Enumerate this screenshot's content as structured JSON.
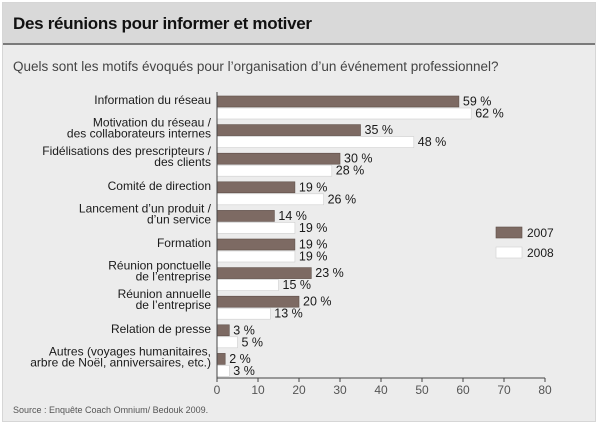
{
  "header": {
    "title": "Des réunions pour informer et motiver",
    "question": "Quels sont les motifs évoqués pour l’organisation d’un événement professionnel?"
  },
  "source": "Source : Enquête Coach Omnium/ Bedouk 2009.",
  "colors": {
    "series_2007": "#7d6a63",
    "series_2008": "#ffffff",
    "background": "#ececec",
    "title_bar": "#d9d9d9"
  },
  "chart_data": {
    "type": "bar",
    "orientation": "horizontal",
    "categories": [
      [
        "Information du réseau"
      ],
      [
        "Motivation du réseau /",
        "des collaborateurs internes"
      ],
      [
        "Fidélisations des prescripteurs /",
        "des clients"
      ],
      [
        "Comité de direction"
      ],
      [
        "Lancement d’un produit /",
        "d’un service"
      ],
      [
        "Formation"
      ],
      [
        "Réunion ponctuelle",
        "de l’entreprise"
      ],
      [
        "Réunion annuelle",
        "de l’entreprise"
      ],
      [
        "Relation de presse"
      ],
      [
        "Autres (voyages humanitaires,",
        "arbre de Noël, anniversaires, etc.)"
      ]
    ],
    "series": [
      {
        "name": "2007",
        "values": [
          59,
          35,
          30,
          19,
          14,
          19,
          23,
          20,
          3,
          2
        ],
        "labels": [
          "59 %",
          "35 %",
          "30 %",
          "19 %",
          "14 %",
          "19 %",
          "23 %",
          "20 %",
          "3 %",
          "2 %"
        ]
      },
      {
        "name": "2008",
        "values": [
          62,
          48,
          28,
          26,
          19,
          19,
          15,
          13,
          5,
          3
        ],
        "labels": [
          "62 %",
          "48 %",
          "28 %",
          "26 %",
          "19 %",
          "19 %",
          "15 %",
          "13 %",
          "5 %",
          "3 %"
        ]
      }
    ],
    "xlim": [
      0,
      80
    ],
    "xticks": [
      "0",
      "10",
      "20",
      "30",
      "40",
      "50",
      "60",
      "70",
      "80"
    ],
    "legend_position": "right",
    "grid": false
  }
}
